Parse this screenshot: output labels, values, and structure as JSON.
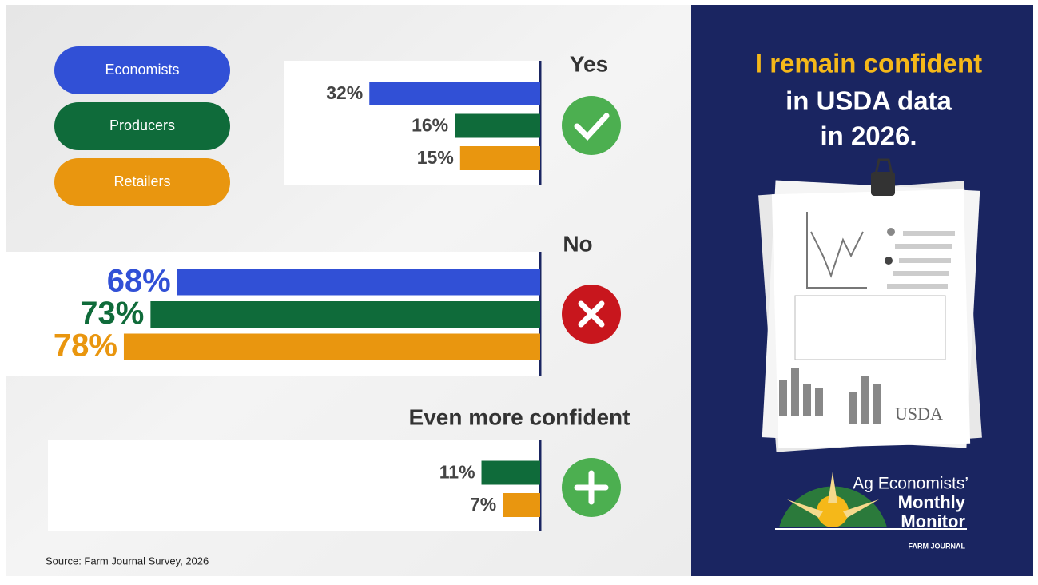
{
  "chart_data": {
    "type": "bar",
    "categories": [
      "Yes",
      "No",
      "Even more confident"
    ],
    "series": [
      {
        "name": "Economists",
        "color": "#3150d6",
        "values": [
          32,
          68,
          null
        ],
        "value_labels": [
          "32%",
          "68%",
          null
        ]
      },
      {
        "name": "Producers",
        "color": "#0f6b3a",
        "values": [
          16,
          73,
          11
        ],
        "value_labels": [
          "16%",
          "73%",
          "11%"
        ]
      },
      {
        "name": "Retailers",
        "color": "#e9960f",
        "values": [
          15,
          78,
          7
        ],
        "value_labels": [
          "15%",
          "78%",
          "7%"
        ]
      }
    ],
    "source": "Source: Farm Journal Survey, 2026"
  },
  "panel": {
    "headline": "I remain confident",
    "subline": [
      "in USDA data",
      "in 2026."
    ],
    "illustration_label": "USDA",
    "logo": {
      "line1": "Ag Economists’",
      "line2": "Monthly",
      "line3": "Monitor",
      "brand": "FARM JOURNAL"
    }
  }
}
